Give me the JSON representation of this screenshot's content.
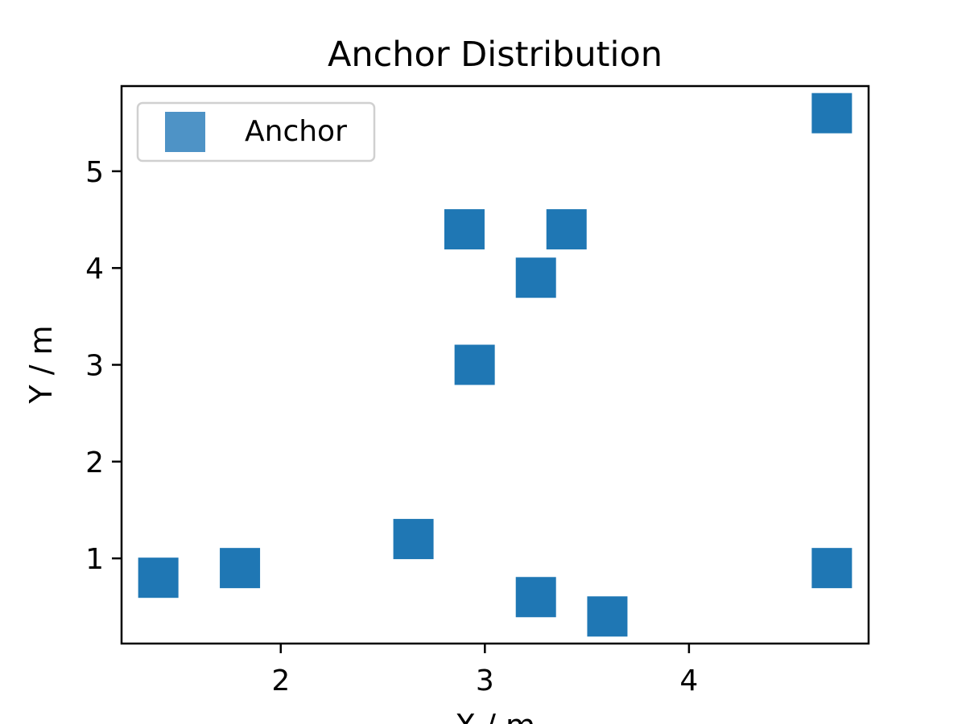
{
  "chart_data": {
    "type": "scatter",
    "title": "Anchor Distribution",
    "xlabel": "X / m",
    "ylabel": "Y / m",
    "xlim": [
      1.22,
      4.88
    ],
    "ylim": [
      0.12,
      5.88
    ],
    "xticks": [
      2,
      3,
      4
    ],
    "yticks": [
      1,
      2,
      3,
      4,
      5
    ],
    "grid": false,
    "legend": {
      "position": "upper-left"
    },
    "marker": "square",
    "series": [
      {
        "name": "Anchor",
        "color": "#1f77b4",
        "legend_color": "#4e93c6",
        "points": [
          {
            "x": 1.4,
            "y": 0.8
          },
          {
            "x": 1.8,
            "y": 0.9
          },
          {
            "x": 2.65,
            "y": 1.2
          },
          {
            "x": 2.9,
            "y": 4.4
          },
          {
            "x": 2.95,
            "y": 3.0
          },
          {
            "x": 3.25,
            "y": 3.9
          },
          {
            "x": 3.4,
            "y": 4.4
          },
          {
            "x": 3.25,
            "y": 0.6
          },
          {
            "x": 3.6,
            "y": 0.4
          },
          {
            "x": 4.7,
            "y": 5.6
          },
          {
            "x": 4.7,
            "y": 0.9
          }
        ]
      }
    ]
  }
}
